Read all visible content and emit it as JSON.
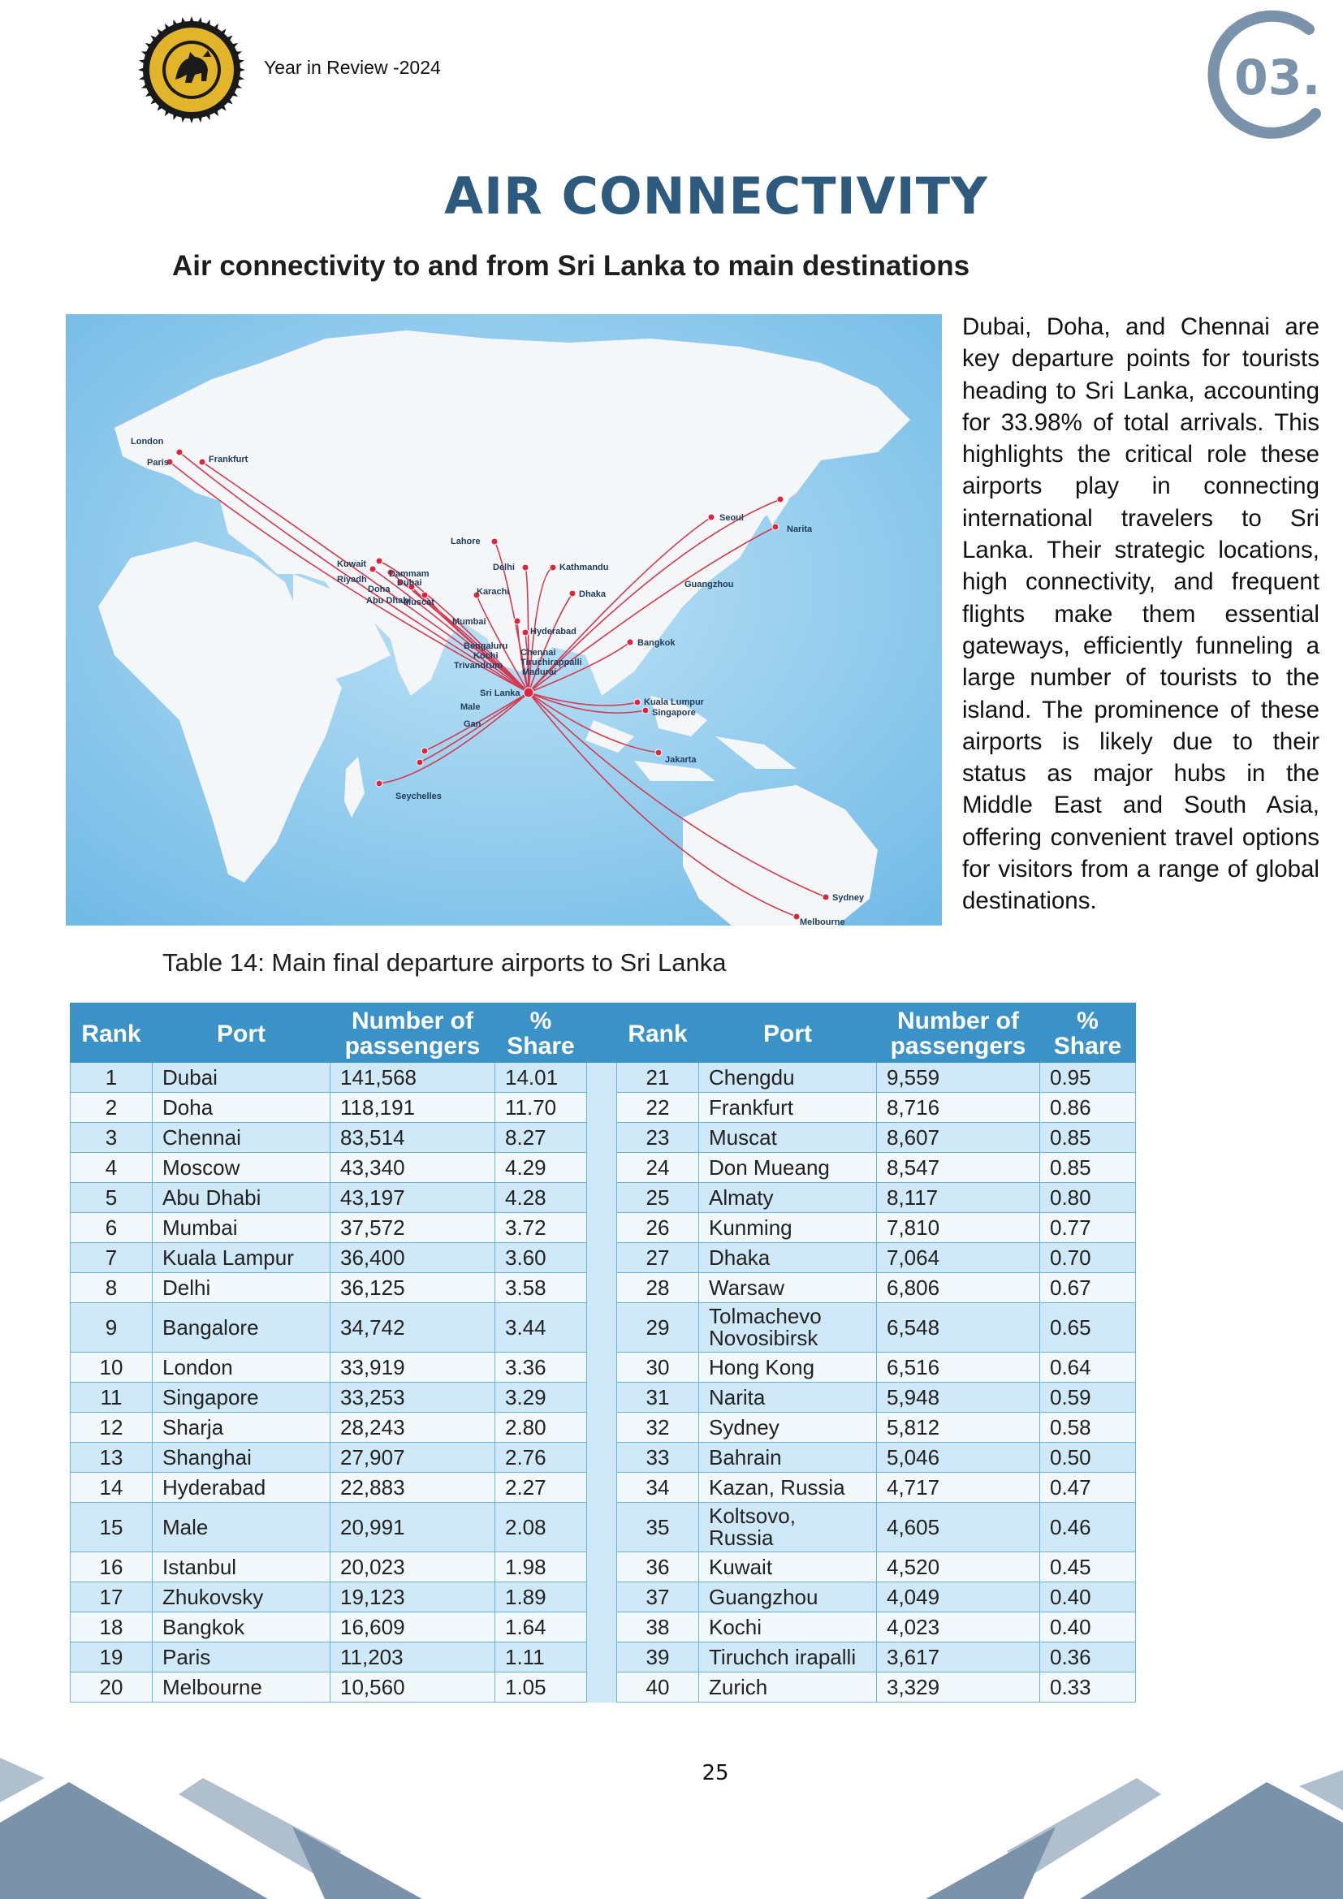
{
  "header": {
    "report_label": "Year in Review -2024",
    "chapter_number": "03."
  },
  "title": "AIR CONNECTIVITY",
  "subtitle": "Air connectivity to and from Sri Lanka to main destinations",
  "map": {
    "hub": "Sri Lanka",
    "destinations": [
      "London",
      "Paris",
      "Frankfurt",
      "Kuwait",
      "Dammam",
      "Riyadh",
      "Doha",
      "Dubai",
      "Abu Dhabi",
      "Muscat",
      "Karachi",
      "Lahore",
      "Delhi",
      "Kathmandu",
      "Dhaka",
      "Mumbai",
      "Hyderabad",
      "Bengaluru",
      "Kochi",
      "Chennai",
      "Trivandrum",
      "Tiruchirappalli",
      "Madurai",
      "Male",
      "Gan",
      "Seychelles",
      "Seoul",
      "Narita",
      "Guangzhou",
      "Bangkok",
      "Kuala Lumpur",
      "Singapore",
      "Jakarta",
      "Sydney",
      "Melbourne"
    ],
    "colors": {
      "ocean": "#8fcbee",
      "land": "#f4f6f8",
      "route": "#d23a50"
    }
  },
  "paragraph": "Dubai, Doha, and Chennai are key departure points for tourists heading to Sri Lanka, accounting for 33.98% of total arrivals. This highlights the critical role these airports play in connecting international travelers to Sri Lanka. Their strategic locations, high connectivity, and frequent flights make them essential gateways, efficiently funneling a large number of tourists to the island. The prominence of these airports is likely due to their status as major hubs in the Middle East and South Asia, offering convenient travel options for visitors from a range of global destinations.",
  "table": {
    "caption": "Table 14: Main final departure airports to Sri Lanka",
    "headers": {
      "rank": "Rank",
      "port": "Port",
      "passengers_1": "Number of",
      "passengers_2": "passengers",
      "share_1": "%",
      "share_2": "Share"
    },
    "rows": [
      {
        "left": {
          "rank": "1",
          "port": "Dubai",
          "passengers": "141,568",
          "share": "14.01"
        },
        "right": {
          "rank": "21",
          "port": "Chengdu",
          "passengers": "9,559",
          "share": "0.95"
        }
      },
      {
        "left": {
          "rank": "2",
          "port": "Doha",
          "passengers": "118,191",
          "share": "11.70"
        },
        "right": {
          "rank": "22",
          "port": "Frankfurt",
          "passengers": "8,716",
          "share": "0.86"
        }
      },
      {
        "left": {
          "rank": "3",
          "port": "Chennai",
          "passengers": "83,514",
          "share": "8.27"
        },
        "right": {
          "rank": "23",
          "port": "Muscat",
          "passengers": "8,607",
          "share": "0.85"
        }
      },
      {
        "left": {
          "rank": "4",
          "port": "Moscow",
          "passengers": "43,340",
          "share": "4.29"
        },
        "right": {
          "rank": "24",
          "port": "Don Mueang",
          "passengers": "8,547",
          "share": "0.85"
        }
      },
      {
        "left": {
          "rank": "5",
          "port": "Abu Dhabi",
          "passengers": "43,197",
          "share": "4.28"
        },
        "right": {
          "rank": "25",
          "port": "Almaty",
          "passengers": "8,117",
          "share": "0.80"
        }
      },
      {
        "left": {
          "rank": "6",
          "port": "Mumbai",
          "passengers": "37,572",
          "share": "3.72"
        },
        "right": {
          "rank": "26",
          "port": "Kunming",
          "passengers": "7,810",
          "share": "0.77"
        }
      },
      {
        "left": {
          "rank": "7",
          "port": "Kuala Lampur",
          "passengers": "36,400",
          "share": "3.60"
        },
        "right": {
          "rank": "27",
          "port": "Dhaka",
          "passengers": "7,064",
          "share": "0.70"
        }
      },
      {
        "left": {
          "rank": "8",
          "port": "Delhi",
          "passengers": "36,125",
          "share": "3.58"
        },
        "right": {
          "rank": "28",
          "port": "Warsaw",
          "passengers": "6,806",
          "share": "0.67"
        }
      },
      {
        "left": {
          "rank": "9",
          "port": "Bangalore",
          "passengers": "34,742",
          "share": "3.44"
        },
        "right": {
          "rank": "29",
          "port": "Tolmachevo",
          "port_2": "Novosibirsk",
          "passengers": "6,548",
          "share": "0.65"
        }
      },
      {
        "left": {
          "rank": "10",
          "port": "London",
          "passengers": "33,919",
          "share": "3.36"
        },
        "right": {
          "rank": "30",
          "port": "Hong Kong",
          "passengers": "6,516",
          "share": "0.64"
        }
      },
      {
        "left": {
          "rank": "11",
          "port": "Singapore",
          "passengers": "33,253",
          "share": "3.29"
        },
        "right": {
          "rank": "31",
          "port": "Narita",
          "passengers": "5,948",
          "share": "0.59"
        }
      },
      {
        "left": {
          "rank": "12",
          "port": "Sharja",
          "passengers": "28,243",
          "share": "2.80"
        },
        "right": {
          "rank": "32",
          "port": "Sydney",
          "passengers": "5,812",
          "share": "0.58"
        }
      },
      {
        "left": {
          "rank": "13",
          "port": "Shanghai",
          "passengers": "27,907",
          "share": "2.76"
        },
        "right": {
          "rank": "33",
          "port": "Bahrain",
          "passengers": "5,046",
          "share": "0.50"
        }
      },
      {
        "left": {
          "rank": "14",
          "port": "Hyderabad",
          "passengers": "22,883",
          "share": "2.27"
        },
        "right": {
          "rank": "34",
          "port": "Kazan, Russia",
          "passengers": "4,717",
          "share": "0.47"
        }
      },
      {
        "left": {
          "rank": "15",
          "port": "Male",
          "passengers": "20,991",
          "share": "2.08"
        },
        "right": {
          "rank": "35",
          "port": "Koltsovo,",
          "port_2": "Russia",
          "passengers": "4,605",
          "share": "0.46"
        }
      },
      {
        "left": {
          "rank": "16",
          "port": "Istanbul",
          "passengers": "20,023",
          "share": "1.98"
        },
        "right": {
          "rank": "36",
          "port": "Kuwait",
          "passengers": "4,520",
          "share": "0.45"
        }
      },
      {
        "left": {
          "rank": "17",
          "port": "Zhukovsky",
          "passengers": "19,123",
          "share": "1.89"
        },
        "right": {
          "rank": "37",
          "port": "Guangzhou",
          "passengers": "4,049",
          "share": "0.40"
        }
      },
      {
        "left": {
          "rank": "18",
          "port": "Bangkok",
          "passengers": "16,609",
          "share": "1.64"
        },
        "right": {
          "rank": "38",
          "port": "Kochi",
          "passengers": "4,023",
          "share": "0.40"
        }
      },
      {
        "left": {
          "rank": "19",
          "port": "Paris",
          "passengers": "11,203",
          "share": "1.11"
        },
        "right": {
          "rank": "39",
          "port": "Tiruchch irapalli",
          "passengers": "3,617",
          "share": "0.36"
        }
      },
      {
        "left": {
          "rank": "20",
          "port": "Melbourne",
          "passengers": "10,560",
          "share": "1.05"
        },
        "right": {
          "rank": "40",
          "port": "Zurich",
          "passengers": "3,329",
          "share": "0.33"
        }
      }
    ]
  },
  "page_number": "25"
}
